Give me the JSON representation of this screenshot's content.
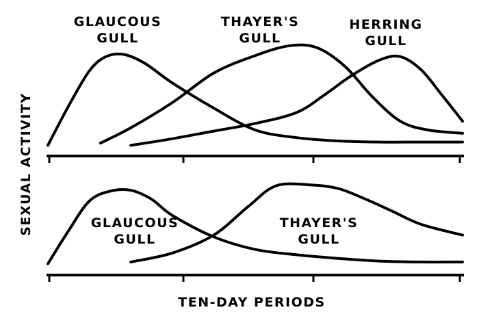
{
  "figure": {
    "y_axis_label": "SEXUAL ACTIVITY",
    "x_axis_label": "TEN-DAY PERIODS"
  },
  "chart_data": [
    {
      "type": "line",
      "xlabel": "TEN-DAY PERIODS",
      "ylabel": "SEXUAL ACTIVITY",
      "xlim": [
        0,
        3
      ],
      "ylim": [
        0,
        1
      ],
      "grid": false,
      "series": [
        {
          "name": "GLAUCOUS GULL",
          "label_lines": [
            "GLAUCOUS",
            "GULL"
          ],
          "x": [
            0.0,
            0.15,
            0.3,
            0.42,
            0.55,
            0.7,
            0.9,
            1.2,
            1.5,
            1.8,
            2.1,
            2.4,
            2.7,
            3.0
          ],
          "y": [
            0.06,
            0.42,
            0.74,
            0.87,
            0.89,
            0.81,
            0.63,
            0.4,
            0.2,
            0.13,
            0.1,
            0.09,
            0.09,
            0.09
          ]
        },
        {
          "name": "THAYER'S GULL",
          "label_lines": [
            "THAYER'S",
            "GULL"
          ],
          "x": [
            0.38,
            0.6,
            0.9,
            1.2,
            1.5,
            1.75,
            1.95,
            2.15,
            2.35,
            2.55,
            2.75,
            3.0
          ],
          "y": [
            0.08,
            0.22,
            0.45,
            0.72,
            0.88,
            0.97,
            0.95,
            0.78,
            0.5,
            0.28,
            0.2,
            0.17
          ]
        },
        {
          "name": "HERRING GULL",
          "label_lines": [
            "HERRING",
            "GULL"
          ],
          "x": [
            0.6,
            0.9,
            1.2,
            1.5,
            1.8,
            2.0,
            2.2,
            2.4,
            2.55,
            2.7,
            2.85,
            3.0
          ],
          "y": [
            0.06,
            0.12,
            0.19,
            0.26,
            0.36,
            0.52,
            0.7,
            0.84,
            0.87,
            0.75,
            0.52,
            0.28
          ]
        }
      ]
    },
    {
      "type": "line",
      "xlabel": "TEN-DAY PERIODS",
      "ylabel": "SEXUAL ACTIVITY",
      "xlim": [
        0,
        3
      ],
      "ylim": [
        0,
        1
      ],
      "grid": false,
      "series": [
        {
          "name": "GLAUCOUS GULL",
          "label_lines": [
            "GLAUCOUS",
            "GULL"
          ],
          "x": [
            0.0,
            0.15,
            0.3,
            0.45,
            0.6,
            0.75,
            0.9,
            1.2,
            1.5,
            1.8,
            2.1,
            2.4,
            2.7,
            3.0
          ],
          "y": [
            0.08,
            0.45,
            0.78,
            0.89,
            0.9,
            0.8,
            0.62,
            0.38,
            0.24,
            0.18,
            0.14,
            0.11,
            0.1,
            0.1
          ]
        },
        {
          "name": "THAYER'S GULL",
          "label_lines": [
            "THAYER'S",
            "GULL"
          ],
          "x": [
            0.6,
            0.9,
            1.2,
            1.45,
            1.65,
            1.9,
            2.1,
            2.3,
            2.5,
            2.7,
            3.0
          ],
          "y": [
            0.1,
            0.2,
            0.4,
            0.72,
            0.95,
            0.96,
            0.92,
            0.8,
            0.66,
            0.52,
            0.4
          ]
        }
      ]
    }
  ]
}
